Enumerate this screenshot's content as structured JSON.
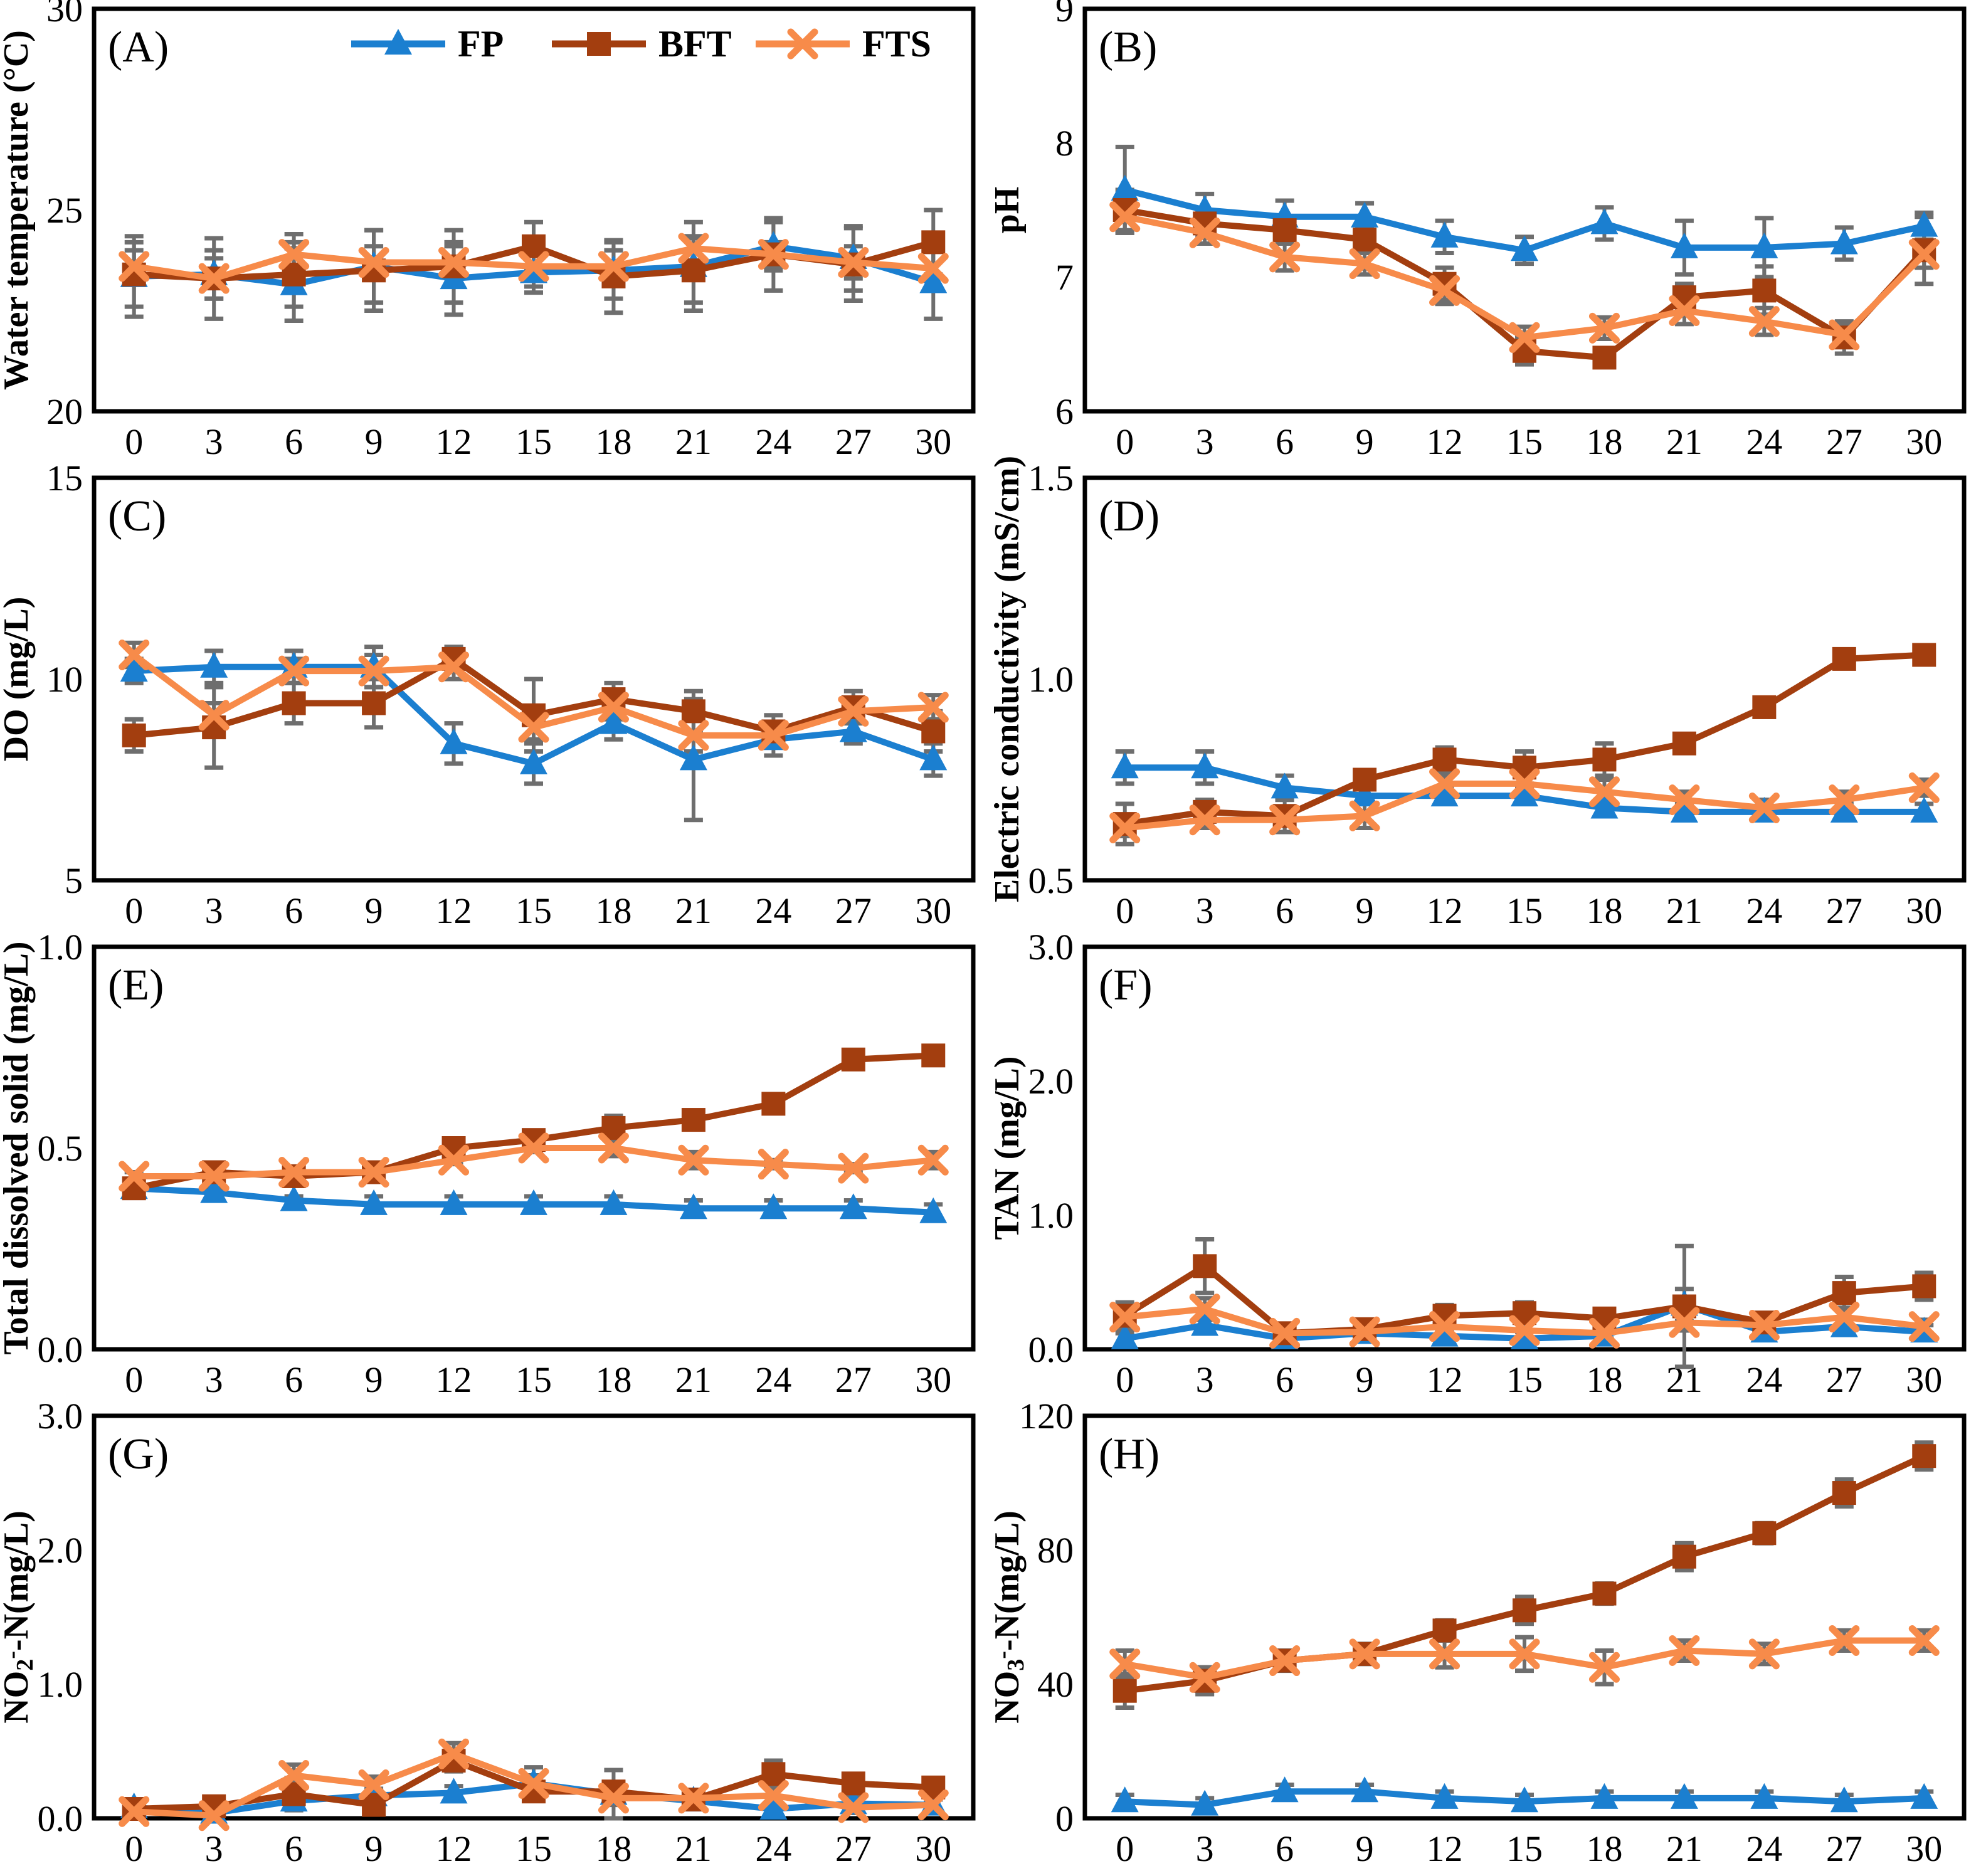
{
  "figure": {
    "background": "#ffffff",
    "axis_color": "#000000",
    "error_bar_color": "#6e6e6e",
    "x_categories": [
      "0",
      "3",
      "6",
      "9",
      "12",
      "15",
      "18",
      "21",
      "24",
      "27",
      "30"
    ]
  },
  "legend": {
    "position": "top-of-panel-A",
    "entries": [
      {
        "label": "FP",
        "marker": "triangle",
        "color": "#1b7fd0"
      },
      {
        "label": "BFT",
        "marker": "square",
        "color": "#a33e0f"
      },
      {
        "label": "FTS",
        "marker": "x",
        "color": "#f78b4a"
      }
    ]
  },
  "chart_data": [
    {
      "id": "A",
      "type": "line",
      "panel_label": "(A)",
      "ylabel": "Water temperature (°C)",
      "ylim": [
        20,
        30
      ],
      "yticks": [
        {
          "v": 20,
          "t": "20"
        },
        {
          "v": 25,
          "t": "25"
        },
        {
          "v": 30,
          "t": "30"
        }
      ],
      "x": [
        0,
        3,
        6,
        9,
        12,
        15,
        18,
        21,
        24,
        27,
        30
      ],
      "legend_visible": true,
      "series": [
        {
          "name": "FP",
          "values": [
            23.35,
            23.4,
            23.15,
            23.6,
            23.3,
            23.45,
            23.5,
            23.6,
            24.1,
            23.8,
            23.2
          ],
          "err": [
            1.0,
            0.6,
            0.9,
            0.9,
            0.9,
            0.5,
            0.7,
            1.1,
            0.6,
            0.8,
            0.9
          ]
        },
        {
          "name": "BFT",
          "values": [
            23.4,
            23.3,
            23.4,
            23.5,
            23.6,
            24.1,
            23.35,
            23.5,
            23.9,
            23.65,
            24.2
          ],
          "err": [
            0.8,
            1.0,
            0.8,
            1.0,
            0.9,
            0.6,
            0.9,
            0.8,
            0.9,
            0.9,
            0.8
          ]
        },
        {
          "name": "FTS",
          "values": [
            23.6,
            23.3,
            23.9,
            23.7,
            23.7,
            23.6,
            23.6,
            24.05,
            23.9,
            23.7,
            23.55
          ],
          "err": [
            0.4,
            0.5,
            0.5,
            0.4,
            0.4,
            0.5,
            0.4,
            0.3,
            0.3,
            0.4,
            0.5
          ]
        }
      ]
    },
    {
      "id": "B",
      "type": "line",
      "panel_label": "(B)",
      "ylabel": "pH",
      "ylim": [
        6,
        9
      ],
      "yticks": [
        {
          "v": 6,
          "t": "6"
        },
        {
          "v": 7,
          "t": "7"
        },
        {
          "v": 8,
          "t": "8"
        },
        {
          "v": 9,
          "t": "9"
        }
      ],
      "x": [
        0,
        3,
        6,
        9,
        12,
        15,
        18,
        21,
        24,
        27,
        30
      ],
      "legend_visible": false,
      "series": [
        {
          "name": "FP",
          "values": [
            7.65,
            7.5,
            7.45,
            7.45,
            7.3,
            7.2,
            7.4,
            7.22,
            7.22,
            7.25,
            7.38
          ],
          "err": [
            0.32,
            0.12,
            0.12,
            0.1,
            0.12,
            0.1,
            0.12,
            0.2,
            0.22,
            0.12,
            0.1
          ]
        },
        {
          "name": "BFT",
          "values": [
            7.5,
            7.4,
            7.35,
            7.28,
            6.95,
            6.45,
            6.4,
            6.85,
            6.9,
            6.55,
            7.2
          ],
          "err": [
            0.15,
            0.1,
            0.1,
            0.1,
            0.12,
            0.1,
            0.05,
            0.1,
            0.18,
            0.12,
            0.25
          ]
        },
        {
          "name": "FTS",
          "values": [
            7.45,
            7.33,
            7.15,
            7.1,
            6.9,
            6.55,
            6.62,
            6.75,
            6.67,
            6.57,
            7.17
          ],
          "err": [
            0.12,
            0.08,
            0.1,
            0.08,
            0.1,
            0.08,
            0.08,
            0.1,
            0.1,
            0.08,
            0.1
          ]
        }
      ]
    },
    {
      "id": "C",
      "type": "line",
      "panel_label": "(C)",
      "ylabel": "DO (mg/L)",
      "ylim": [
        5,
        15
      ],
      "yticks": [
        {
          "v": 5,
          "t": "5"
        },
        {
          "v": 10,
          "t": "10"
        },
        {
          "v": 15,
          "t": "15"
        }
      ],
      "x": [
        0,
        3,
        6,
        9,
        12,
        15,
        18,
        21,
        24,
        27,
        30
      ],
      "legend_visible": false,
      "series": [
        {
          "name": "FP",
          "values": [
            10.2,
            10.3,
            10.3,
            10.3,
            8.4,
            7.9,
            8.9,
            8.0,
            8.5,
            8.7,
            8.0
          ],
          "err": [
            0.3,
            0.4,
            0.4,
            0.5,
            0.5,
            0.5,
            0.4,
            1.5,
            0.4,
            0.3,
            0.4
          ]
        },
        {
          "name": "BFT",
          "values": [
            8.6,
            8.8,
            9.4,
            9.4,
            10.5,
            9.1,
            9.5,
            9.2,
            8.7,
            9.3,
            8.7
          ],
          "err": [
            0.4,
            1.0,
            0.5,
            0.6,
            0.3,
            0.9,
            0.4,
            0.5,
            0.4,
            0.4,
            0.5
          ]
        },
        {
          "name": "FTS",
          "values": [
            10.6,
            9.1,
            10.2,
            10.2,
            10.3,
            8.8,
            9.3,
            8.6,
            8.6,
            9.2,
            9.3
          ],
          "err": [
            0.3,
            0.3,
            0.3,
            0.4,
            0.3,
            0.3,
            0.3,
            0.4,
            0.3,
            0.3,
            0.3
          ]
        }
      ]
    },
    {
      "id": "D",
      "type": "line",
      "panel_label": "(D)",
      "ylabel": "Electric conductivity (mS/cm)",
      "ylim": [
        0.5,
        1.5
      ],
      "yticks": [
        {
          "v": 0.5,
          "t": "0.5"
        },
        {
          "v": 1.0,
          "t": "1.0"
        },
        {
          "v": 1.5,
          "t": "1.5"
        }
      ],
      "x": [
        0,
        3,
        6,
        9,
        12,
        15,
        18,
        21,
        24,
        27,
        30
      ],
      "legend_visible": false,
      "series": [
        {
          "name": "FP",
          "values": [
            0.78,
            0.78,
            0.73,
            0.71,
            0.71,
            0.71,
            0.68,
            0.67,
            0.67,
            0.67,
            0.67
          ],
          "err": [
            0.04,
            0.04,
            0.03,
            0.02,
            0.02,
            0.02,
            0.02,
            0.02,
            0.02,
            0.02,
            0.02
          ]
        },
        {
          "name": "BFT",
          "values": [
            0.64,
            0.67,
            0.66,
            0.75,
            0.8,
            0.78,
            0.8,
            0.84,
            0.93,
            1.05,
            1.06
          ],
          "err": [
            0.05,
            0.03,
            0.04,
            0.02,
            0.03,
            0.04,
            0.04,
            0.02,
            0.02,
            0.02,
            0.02
          ]
        },
        {
          "name": "FTS",
          "values": [
            0.63,
            0.65,
            0.65,
            0.66,
            0.74,
            0.74,
            0.72,
            0.7,
            0.68,
            0.7,
            0.73
          ],
          "err": [
            0.02,
            0.02,
            0.03,
            0.03,
            0.02,
            0.02,
            0.03,
            0.02,
            0.02,
            0.02,
            0.02
          ]
        }
      ]
    },
    {
      "id": "E",
      "type": "line",
      "panel_label": "(E)",
      "ylabel": "Total dissolved solid (mg/L)",
      "ylim": [
        0,
        1
      ],
      "yticks": [
        {
          "v": 0,
          "t": "0.0"
        },
        {
          "v": 0.5,
          "t": "0.5"
        },
        {
          "v": 1,
          "t": "1.0"
        }
      ],
      "x": [
        0,
        3,
        6,
        9,
        12,
        15,
        18,
        21,
        24,
        27,
        30
      ],
      "legend_visible": false,
      "series": [
        {
          "name": "FP",
          "values": [
            0.4,
            0.39,
            0.37,
            0.36,
            0.36,
            0.36,
            0.36,
            0.35,
            0.35,
            0.35,
            0.34
          ],
          "err": [
            0.01,
            0.01,
            0.01,
            0.02,
            0.02,
            0.02,
            0.02,
            0.02,
            0.02,
            0.02,
            0.02
          ]
        },
        {
          "name": "BFT",
          "values": [
            0.4,
            0.44,
            0.43,
            0.44,
            0.5,
            0.52,
            0.55,
            0.57,
            0.61,
            0.72,
            0.73
          ],
          "err": [
            0.01,
            0.01,
            0.01,
            0.01,
            0.01,
            0.01,
            0.03,
            0.01,
            0.01,
            0.01,
            0.01
          ]
        },
        {
          "name": "FTS",
          "values": [
            0.43,
            0.43,
            0.44,
            0.44,
            0.47,
            0.5,
            0.5,
            0.47,
            0.46,
            0.45,
            0.47
          ],
          "err": [
            0.01,
            0.01,
            0.01,
            0.01,
            0.01,
            0.01,
            0.02,
            0.02,
            0.01,
            0.01,
            0.02
          ]
        }
      ]
    },
    {
      "id": "F",
      "type": "line",
      "panel_label": "(F)",
      "ylabel": "TAN (mg/L)",
      "ylim": [
        0,
        3
      ],
      "yticks": [
        {
          "v": 0,
          "t": "0.0"
        },
        {
          "v": 1,
          "t": "1.0"
        },
        {
          "v": 2,
          "t": "2.0"
        },
        {
          "v": 3,
          "t": "3.0"
        }
      ],
      "x": [
        0,
        3,
        6,
        9,
        12,
        15,
        18,
        21,
        24,
        27,
        30
      ],
      "legend_visible": false,
      "series": [
        {
          "name": "FP",
          "values": [
            0.08,
            0.18,
            0.08,
            0.12,
            0.1,
            0.08,
            0.1,
            0.33,
            0.13,
            0.17,
            0.13
          ],
          "err": [
            0.04,
            0.05,
            0.05,
            0.04,
            0.04,
            0.05,
            0.04,
            0.12,
            0.05,
            0.06,
            0.05
          ]
        },
        {
          "name": "BFT",
          "values": [
            0.25,
            0.62,
            0.12,
            0.15,
            0.25,
            0.27,
            0.23,
            0.32,
            0.2,
            0.42,
            0.47
          ],
          "err": [
            0.1,
            0.2,
            0.05,
            0.05,
            0.08,
            0.08,
            0.07,
            0.45,
            0.06,
            0.12,
            0.1
          ]
        },
        {
          "name": "FTS",
          "values": [
            0.24,
            0.3,
            0.12,
            0.13,
            0.17,
            0.14,
            0.12,
            0.2,
            0.18,
            0.24,
            0.17
          ],
          "err": [
            0.05,
            0.08,
            0.04,
            0.04,
            0.05,
            0.05,
            0.04,
            0.06,
            0.05,
            0.07,
            0.05
          ]
        }
      ]
    },
    {
      "id": "G",
      "type": "line",
      "panel_label": "(G)",
      "ylabel": "NO₂⁻-N(mg/L)",
      "ylabel_rich": [
        {
          "t": "NO"
        },
        {
          "t": "2",
          "pos": "sub"
        },
        {
          "t": "-",
          "pos": "sup"
        },
        {
          "t": "-N(mg/L)"
        }
      ],
      "ylim": [
        0,
        3
      ],
      "yticks": [
        {
          "v": 0,
          "t": "0.0"
        },
        {
          "v": 1,
          "t": "1.0"
        },
        {
          "v": 2,
          "t": "2.0"
        },
        {
          "v": 3,
          "t": "3.0"
        }
      ],
      "x": [
        0,
        3,
        6,
        9,
        12,
        15,
        18,
        21,
        24,
        27,
        30
      ],
      "legend_visible": false,
      "series": [
        {
          "name": "FP",
          "values": [
            0.08,
            0.04,
            0.13,
            0.17,
            0.19,
            0.26,
            0.18,
            0.13,
            0.07,
            0.11,
            0.1
          ],
          "err": [
            0.05,
            0.04,
            0.05,
            0.05,
            0.05,
            0.12,
            0.18,
            0.05,
            0.04,
            0.05,
            0.04
          ]
        },
        {
          "name": "BFT",
          "values": [
            0.07,
            0.09,
            0.18,
            0.1,
            0.43,
            0.2,
            0.2,
            0.14,
            0.33,
            0.26,
            0.23
          ],
          "err": [
            0.05,
            0.05,
            0.12,
            0.06,
            0.08,
            0.06,
            0.06,
            0.06,
            0.1,
            0.06,
            0.06
          ]
        },
        {
          "name": "FTS",
          "values": [
            0.05,
            0.02,
            0.32,
            0.25,
            0.48,
            0.26,
            0.15,
            0.15,
            0.17,
            0.08,
            0.1
          ],
          "err": [
            0.04,
            0.04,
            0.08,
            0.06,
            0.08,
            0.06,
            0.05,
            0.05,
            0.05,
            0.04,
            0.04
          ]
        }
      ]
    },
    {
      "id": "H",
      "type": "line",
      "panel_label": "(H)",
      "ylabel": "NO₃⁻-N(mg/L)",
      "ylabel_rich": [
        {
          "t": "NO"
        },
        {
          "t": "3",
          "pos": "sub"
        },
        {
          "t": "-",
          "pos": "sup"
        },
        {
          "t": "-N(mg/L)"
        }
      ],
      "ylim": [
        0,
        120
      ],
      "yticks": [
        {
          "v": 0,
          "t": "0"
        },
        {
          "v": 40,
          "t": "40"
        },
        {
          "v": 80,
          "t": "80"
        },
        {
          "v": 120,
          "t": "120"
        }
      ],
      "x": [
        0,
        3,
        6,
        9,
        12,
        15,
        18,
        21,
        24,
        27,
        30
      ],
      "legend_visible": false,
      "series": [
        {
          "name": "FP",
          "values": [
            5,
            4,
            8,
            8,
            6,
            5,
            6,
            6,
            6,
            5,
            6
          ],
          "err": [
            2,
            2,
            2,
            2,
            2,
            2,
            2,
            2,
            2,
            2,
            2
          ]
        },
        {
          "name": "BFT",
          "values": [
            38,
            41,
            47,
            49,
            56,
            62,
            67,
            78,
            85,
            97,
            108
          ],
          "err": [
            5,
            4,
            3,
            3,
            3,
            4,
            3,
            4,
            3,
            4,
            4
          ]
        },
        {
          "name": "FTS",
          "values": [
            46,
            42,
            47,
            49,
            49,
            49,
            45,
            50,
            49,
            53,
            53
          ],
          "err": [
            4,
            3,
            2,
            2,
            4,
            5,
            5,
            3,
            3,
            3,
            3
          ]
        }
      ]
    }
  ]
}
